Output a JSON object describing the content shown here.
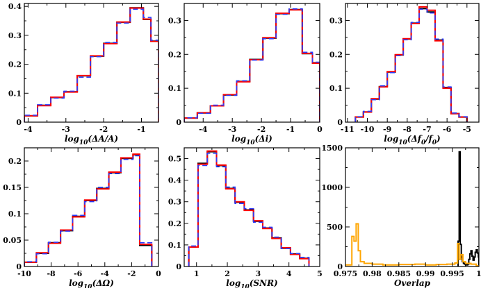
{
  "figure": {
    "colors": {
      "black": "#000000",
      "red": "#ff0000",
      "blue": "#2a3cff",
      "orange": "#ffa500",
      "frame": "#000000"
    }
  },
  "chart_data": [
    {
      "id": "p1",
      "type": "histogram",
      "xlabel_main": "log",
      "xlabel_sub": "10",
      "xlabel_rest": "(ΔA/A)",
      "xlim": [
        -4.1,
        -0.55
      ],
      "ylim": [
        0,
        0.41
      ],
      "xticks": [
        -4,
        -3,
        -2,
        -1
      ],
      "xtick_labels": [
        "-4",
        "-3",
        "-2",
        "-1"
      ],
      "yticks": [
        0,
        0.1,
        0.2,
        0.3,
        0.4
      ],
      "ytick_labels": [
        "0",
        "0.1",
        "0.2",
        "0.3",
        "0.4"
      ],
      "bin_edges": [
        -4.1,
        -3.75,
        -3.4,
        -3.05,
        -2.7,
        -2.35,
        -2.0,
        -1.65,
        -1.3,
        -0.95,
        -0.75,
        -0.55
      ],
      "series": [
        {
          "name": "black",
          "color": "black",
          "values": [
            0.022,
            0.058,
            0.085,
            0.105,
            0.16,
            0.228,
            0.272,
            0.345,
            0.395,
            0.355,
            0.28
          ]
        },
        {
          "name": "red",
          "color": "red",
          "values": [
            0.022,
            0.057,
            0.086,
            0.104,
            0.161,
            0.229,
            0.271,
            0.346,
            0.394,
            0.356,
            0.279
          ]
        },
        {
          "name": "blue",
          "color": "blue",
          "dashed": true,
          "values": [
            0.024,
            0.06,
            0.083,
            0.107,
            0.155,
            0.226,
            0.275,
            0.342,
            0.39,
            0.362,
            0.283
          ]
        }
      ]
    },
    {
      "id": "p2",
      "type": "histogram",
      "xlabel_main": "log",
      "xlabel_sub": "10",
      "xlabel_rest": "(Δi)",
      "xlim": [
        -4.65,
        0
      ],
      "ylim": [
        0,
        0.35
      ],
      "xticks": [
        -4,
        -3,
        -2,
        -1,
        0
      ],
      "xtick_labels": [
        "-4",
        "-3",
        "-2",
        "-1",
        "0"
      ],
      "yticks": [
        0,
        0.1,
        0.2,
        0.3
      ],
      "ytick_labels": [
        "0",
        "0.1",
        "0.2",
        "0.3"
      ],
      "bin_edges": [
        -4.65,
        -4.2,
        -3.75,
        -3.3,
        -2.85,
        -2.4,
        -1.95,
        -1.5,
        -1.05,
        -0.6,
        -0.25,
        0
      ],
      "series": [
        {
          "name": "black",
          "color": "black",
          "values": [
            0.012,
            0.027,
            0.048,
            0.08,
            0.12,
            0.185,
            0.248,
            0.32,
            0.332,
            0.202,
            0.175
          ]
        },
        {
          "name": "red",
          "color": "red",
          "values": [
            0.012,
            0.028,
            0.048,
            0.081,
            0.119,
            0.184,
            0.249,
            0.321,
            0.331,
            0.203,
            0.174
          ]
        },
        {
          "name": "blue",
          "color": "blue",
          "dashed": true,
          "values": [
            0.013,
            0.026,
            0.05,
            0.079,
            0.122,
            0.183,
            0.246,
            0.318,
            0.334,
            0.206,
            0.177
          ]
        }
      ]
    },
    {
      "id": "p3",
      "type": "histogram",
      "xlabel_main": "log",
      "xlabel_sub": "10",
      "xlabel_rest": "(Δf",
      "xlabel_sub2": "0",
      "xlabel_rest2": "/f",
      "xlabel_sub3": "0",
      "xlabel_rest3": ")",
      "xlim": [
        -11.1,
        -4.4
      ],
      "ylim": [
        0,
        0.35
      ],
      "xticks": [
        -11,
        -10,
        -9,
        -8,
        -7,
        -6,
        -5
      ],
      "xtick_labels": [
        "-11",
        "-10",
        "-9",
        "-8",
        "-7",
        "-6",
        "-5"
      ],
      "yticks": [
        0,
        0.1,
        0.2,
        0.3
      ],
      "ytick_labels": [
        "0",
        "0.1",
        "0.2",
        "0.3"
      ],
      "bin_edges": [
        -10.6,
        -10.2,
        -9.8,
        -9.4,
        -9.0,
        -8.6,
        -8.2,
        -7.8,
        -7.4,
        -7.0,
        -6.6,
        -6.2,
        -5.8,
        -5.4,
        -5.0
      ],
      "series": [
        {
          "name": "black",
          "color": "black",
          "values": [
            0.015,
            0.03,
            0.068,
            0.105,
            0.148,
            0.198,
            0.245,
            0.292,
            0.335,
            0.325,
            0.242,
            0.102,
            0.025,
            0.015
          ]
        },
        {
          "name": "red",
          "color": "red",
          "values": [
            0.015,
            0.03,
            0.069,
            0.104,
            0.149,
            0.199,
            0.246,
            0.291,
            0.34,
            0.33,
            0.24,
            0.1,
            0.025,
            0.015
          ]
        },
        {
          "name": "blue",
          "color": "blue",
          "dashed": true,
          "values": [
            0.016,
            0.032,
            0.066,
            0.107,
            0.146,
            0.196,
            0.243,
            0.294,
            0.333,
            0.322,
            0.245,
            0.104,
            0.027,
            0.016
          ]
        }
      ]
    },
    {
      "id": "p4",
      "type": "histogram",
      "xlabel_main": "log",
      "xlabel_sub": "10",
      "xlabel_rest": "(ΔΩ)",
      "xlim": [
        -10,
        0
      ],
      "ylim": [
        0,
        0.225
      ],
      "xticks": [
        -10,
        -8,
        -6,
        -4,
        -2,
        0
      ],
      "xtick_labels": [
        "-10",
        "-8",
        "-6",
        "-4",
        "-2",
        "0"
      ],
      "yticks": [
        0,
        0.05,
        0.1,
        0.15,
        0.2
      ],
      "ytick_labels": [
        "0",
        "0.05",
        "0.1",
        "0.15",
        "0.2"
      ],
      "bin_edges": [
        -10,
        -9.1,
        -8.2,
        -7.3,
        -6.4,
        -5.5,
        -4.6,
        -3.7,
        -2.8,
        -1.9,
        -1.4,
        -0.5
      ],
      "series": [
        {
          "name": "black",
          "color": "black",
          "values": [
            0.008,
            0.025,
            0.045,
            0.068,
            0.095,
            0.125,
            0.148,
            0.178,
            0.205,
            0.212,
            0.04
          ]
        },
        {
          "name": "red",
          "color": "red",
          "values": [
            0.008,
            0.026,
            0.044,
            0.069,
            0.094,
            0.126,
            0.147,
            0.179,
            0.206,
            0.213,
            0.042
          ]
        },
        {
          "name": "blue",
          "color": "blue",
          "dashed": true,
          "values": [
            0.009,
            0.024,
            0.046,
            0.067,
            0.097,
            0.123,
            0.15,
            0.176,
            0.203,
            0.21,
            0.045
          ]
        }
      ]
    },
    {
      "id": "p5",
      "type": "histogram",
      "xlabel_main": "log",
      "xlabel_sub": "10",
      "xlabel_rest": "(SNR)",
      "xlim": [
        0.6,
        5
      ],
      "ylim": [
        0,
        0.55
      ],
      "xticks": [
        1,
        2,
        3,
        4,
        5
      ],
      "xtick_labels": [
        "1",
        "2",
        "3",
        "4",
        "5"
      ],
      "yticks": [
        0,
        0.1,
        0.2,
        0.3,
        0.4,
        0.5
      ],
      "ytick_labels": [
        "0",
        "0.1",
        "0.2",
        "0.3",
        "0.4",
        "0.5"
      ],
      "bin_edges": [
        0.75,
        1.05,
        1.35,
        1.65,
        1.95,
        2.25,
        2.55,
        2.85,
        3.15,
        3.45,
        3.75,
        4.05,
        4.35,
        4.65
      ],
      "series": [
        {
          "name": "black",
          "color": "black",
          "values": [
            0.09,
            0.478,
            0.532,
            0.468,
            0.362,
            0.298,
            0.262,
            0.21,
            0.178,
            0.132,
            0.085,
            0.058,
            0.038
          ]
        },
        {
          "name": "red",
          "color": "red",
          "values": [
            0.09,
            0.474,
            0.535,
            0.47,
            0.36,
            0.3,
            0.26,
            0.212,
            0.176,
            0.13,
            0.087,
            0.056,
            0.036
          ]
        },
        {
          "name": "blue",
          "color": "blue",
          "dashed": true,
          "values": [
            0.095,
            0.468,
            0.525,
            0.462,
            0.368,
            0.292,
            0.268,
            0.205,
            0.182,
            0.136,
            0.083,
            0.06,
            0.042
          ]
        }
      ]
    },
    {
      "id": "p6",
      "type": "histogram",
      "xlabel_main": "Overlap",
      "xlim": [
        0.975,
        1.0
      ],
      "ylim": [
        0,
        1500
      ],
      "xticks": [
        0.975,
        0.98,
        0.985,
        0.99,
        0.995,
        1.0
      ],
      "xtick_labels": [
        "0.975",
        "0.98",
        "0.985",
        "0.99",
        "0.995",
        "1"
      ],
      "yticks": [
        0,
        500,
        1000,
        1500
      ],
      "ytick_labels": [
        "0",
        "500",
        "1000",
        "1500"
      ],
      "series": [
        {
          "name": "black",
          "color": "black",
          "bin_edges": [
            0.9961,
            0.9963,
            0.9965,
            0.9967,
            0.9969,
            0.9971,
            0.9973,
            0.9975,
            0.9977,
            0.9979,
            0.9981,
            0.9983,
            0.9985,
            0.9987,
            0.9989,
            0.9991,
            0.9993,
            0.9995,
            0.9997,
            0.9999,
            1.0
          ],
          "values": [
            320,
            1450,
            280,
            120,
            60,
            40,
            30,
            20,
            20,
            30,
            90,
            160,
            200,
            130,
            80,
            120,
            180,
            210,
            170,
            120
          ]
        },
        {
          "name": "orange",
          "color": "orange",
          "bin_edges": [
            0.975,
            0.9762,
            0.9766,
            0.977,
            0.9774,
            0.9778,
            0.9785,
            0.98,
            0.982,
            0.985,
            0.988,
            0.99,
            0.992,
            0.994,
            0.9955,
            0.996,
            0.9963,
            0.9966,
            0.997,
            0.9975,
            0.9985,
            0.9995,
            1.0
          ],
          "values": [
            20,
            380,
            320,
            540,
            200,
            60,
            40,
            30,
            20,
            25,
            30,
            20,
            25,
            30,
            45,
            290,
            90,
            150,
            60,
            40,
            30,
            10
          ]
        }
      ]
    }
  ]
}
